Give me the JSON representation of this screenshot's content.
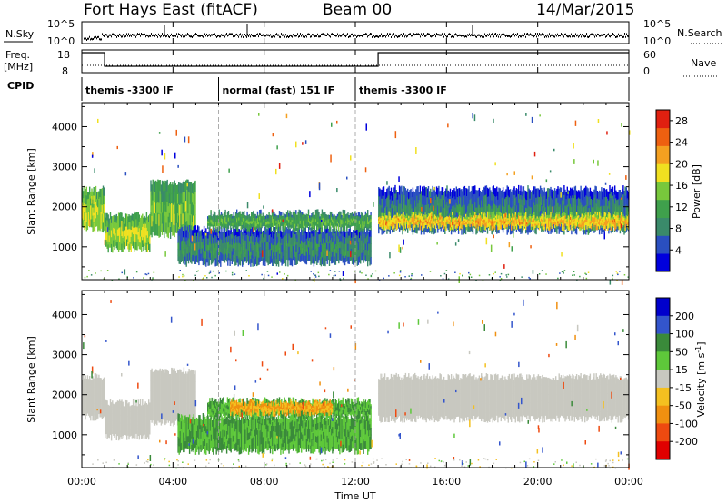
{
  "header": {
    "station": "Fort Hays East (fitACF)",
    "beam": "Beam 00",
    "date": "14/Mar/2015"
  },
  "strip_labels": {
    "nsky": "N.Sky",
    "nsearch": "N.Search",
    "freq": "Freq.",
    "freq_unit": "[MHz]",
    "nave": "Nave",
    "cpid": "CPID",
    "nsky_ticks": [
      "10^5",
      "10^0"
    ],
    "nsearch_ticks": [
      "10^5",
      "10^0"
    ],
    "freq_ticks": [
      "18",
      "8"
    ],
    "nave_ticks": [
      "60",
      "0"
    ]
  },
  "cpid_segments": [
    {
      "label": "themis -3300 IF",
      "start_hour": 0,
      "end_hour": 6
    },
    {
      "label": "normal (fast) 151 IF",
      "start_hour": 6,
      "end_hour": 12
    },
    {
      "label": "themis -3300 IF",
      "start_hour": 12,
      "end_hour": 24
    }
  ],
  "colors": {
    "power_scale": [
      "#0000dd",
      "#2a4fc0",
      "#3a8a6a",
      "#3fa04c",
      "#78c83c",
      "#f0e020",
      "#f4a020",
      "#ee6010",
      "#e02010"
    ],
    "velocity_scale": [
      "#0000cc",
      "#3355cc",
      "#3a8a3a",
      "#5ec83a",
      "#c8c8c0",
      "#f4c020",
      "#f09010",
      "#ee4a10",
      "#e00000"
    ]
  },
  "chart_data": [
    {
      "type": "heatmap",
      "title": "",
      "ylabel": "Slant Range [km]",
      "xlabel": "Time UT",
      "xlim": [
        0,
        24
      ],
      "ylim": [
        180,
        4600
      ],
      "x_ticks": [
        "00:00",
        "04:00",
        "08:00",
        "12:00",
        "16:00",
        "20:00",
        "00:00"
      ],
      "y_ticks": [
        1000,
        2000,
        3000,
        4000
      ],
      "colorbar": {
        "label": "Power [dB]",
        "ticks": [
          4,
          8,
          12,
          16,
          20,
          24,
          28
        ],
        "range": [
          0,
          30
        ]
      },
      "regions": [
        {
          "t0": 0.0,
          "t1": 1.0,
          "r0": 1450,
          "r1": 2450,
          "value": 16
        },
        {
          "t0": 1.0,
          "t1": 3.0,
          "r0": 950,
          "r1": 1800,
          "value": 16
        },
        {
          "t0": 3.0,
          "t1": 5.0,
          "r0": 1300,
          "r1": 2600,
          "value": 14
        },
        {
          "t0": 4.2,
          "t1": 12.7,
          "r0": 600,
          "r1": 1450,
          "value": 8
        },
        {
          "t0": 5.5,
          "t1": 12.7,
          "r0": 1450,
          "r1": 1850,
          "value": 12
        },
        {
          "t0": 13.0,
          "t1": 24.0,
          "r0": 1400,
          "r1": 2450,
          "value": 8
        },
        {
          "t0": 13.0,
          "t1": 24.0,
          "r0": 1500,
          "r1": 1800,
          "value": 20
        }
      ]
    },
    {
      "type": "heatmap",
      "title": "",
      "ylabel": "Slant Range [km]",
      "xlabel": "Time UT",
      "xlim": [
        0,
        24
      ],
      "ylim": [
        180,
        4600
      ],
      "x_ticks": [
        "00:00",
        "04:00",
        "08:00",
        "12:00",
        "16:00",
        "20:00",
        "00:00"
      ],
      "y_ticks": [
        1000,
        2000,
        3000,
        4000
      ],
      "colorbar": {
        "label": "Velocity [m s^-1]",
        "ticks": [
          200,
          100,
          50,
          15,
          -15,
          -50,
          -100,
          -200
        ]
      },
      "regions": [
        {
          "t0": 0.0,
          "t1": 1.0,
          "r0": 1450,
          "r1": 2450,
          "value": 0
        },
        {
          "t0": 1.0,
          "t1": 3.0,
          "r0": 950,
          "r1": 1800,
          "value": 0
        },
        {
          "t0": 3.0,
          "t1": 5.0,
          "r0": 1300,
          "r1": 2600,
          "value": 0
        },
        {
          "t0": 4.2,
          "t1": 12.7,
          "r0": 600,
          "r1": 1450,
          "value": 50
        },
        {
          "t0": 5.5,
          "t1": 12.7,
          "r0": 1450,
          "r1": 1850,
          "value": 50
        },
        {
          "t0": 6.5,
          "t1": 11.0,
          "r0": 1550,
          "r1": 1800,
          "value": -50
        },
        {
          "t0": 13.0,
          "t1": 24.0,
          "r0": 1400,
          "r1": 2450,
          "value": 0
        }
      ]
    }
  ]
}
